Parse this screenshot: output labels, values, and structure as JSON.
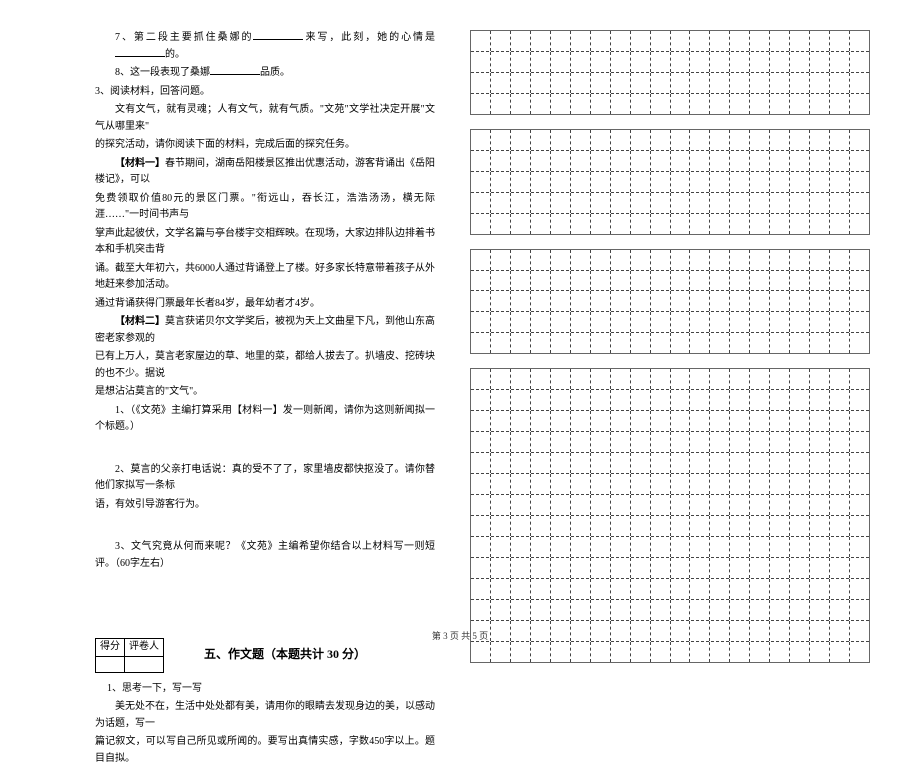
{
  "left": {
    "q7": "7、第二段主要抓住桑娜的",
    "q7_mid": "来写，此刻，她的心情是",
    "q7_end": "的。",
    "q8": "8、这一段表现了桑娜",
    "q8_end": "品质。",
    "q3_head": "3、阅读材料，回答问题。",
    "intro1": "文有文气，就有灵魂；人有文气，就有气质。\"文苑\"文学社决定开展\"文气从哪里来\"",
    "intro2": "的探究活动，请你阅读下面的材料，完成后面的探究任务。",
    "mat1_label": "【材料一】",
    "mat1_l1": "春节期间，湖南岳阳楼景区推出优惠活动，游客背诵出《岳阳楼记》，可以",
    "mat1_l2": "免费领取价值80元的景区门票。\"衔远山，吞长江，浩浩汤汤，横无际涯……\"一时间书声与",
    "mat1_l3": "掌声此起彼伏，文学名篇与亭台楼宇交相辉映。在现场，大家边排队边排着书本和手机突击背",
    "mat1_l4": "诵。截至大年初六，共6000人通过背诵登上了楼。好多家长特意带着孩子从外地赶来参加活动。",
    "mat1_l5": "通过背诵获得门票最年长者84岁，最年幼者才4岁。",
    "mat2_label": "【材料二】",
    "mat2_l1": "莫言获诺贝尔文学奖后，被视为天上文曲星下凡，到他山东高密老家参观的",
    "mat2_l2": "已有上万人，莫言老家屋边的草、地里的菜，都给人拔去了。扒墙皮、挖砖块的也不少。据说",
    "mat2_l3": "是想沾沾莫言的\"文气\"。",
    "sub1": "1、（《文苑》主编打算采用【材料一】发一则新闻，请你为这则新闻拟一个标题。）",
    "sub2a": "2、莫言的父亲打电话说：真的受不了了，家里墙皮都快抠没了。请你替他们家拟写一条标",
    "sub2b": "语，有效引导游客行为。",
    "sub3": "3、文气究竟从何而来呢？《文苑》主编希望你结合以上材料写一则短评。（60字左右）",
    "score_cell1": "得分",
    "score_cell2": "评卷人",
    "section5": "五、作文题（本题共计 30 分）",
    "essay_head": "1、思考一下，写一写",
    "essay_l1": "美无处不在，生活中处处都有美，请用你的眼睛去发现身边的美，以感动为话题，写一",
    "essay_l2": "篇记叙文，可以写自己所见或所闻的。要写出真情实感，字数450字以上。题目自拟。"
  },
  "footer": "第 3 页 共 5 页",
  "grids": {
    "cols": 20,
    "block1_rows": 4,
    "block2_rows": 5,
    "block3_rows": 5,
    "block4_rows": 14
  },
  "styles": {
    "bg": "#ffffff",
    "text_color": "#000000",
    "font_size_body": 10,
    "font_size_section": 12,
    "grid_border": "#444444"
  }
}
